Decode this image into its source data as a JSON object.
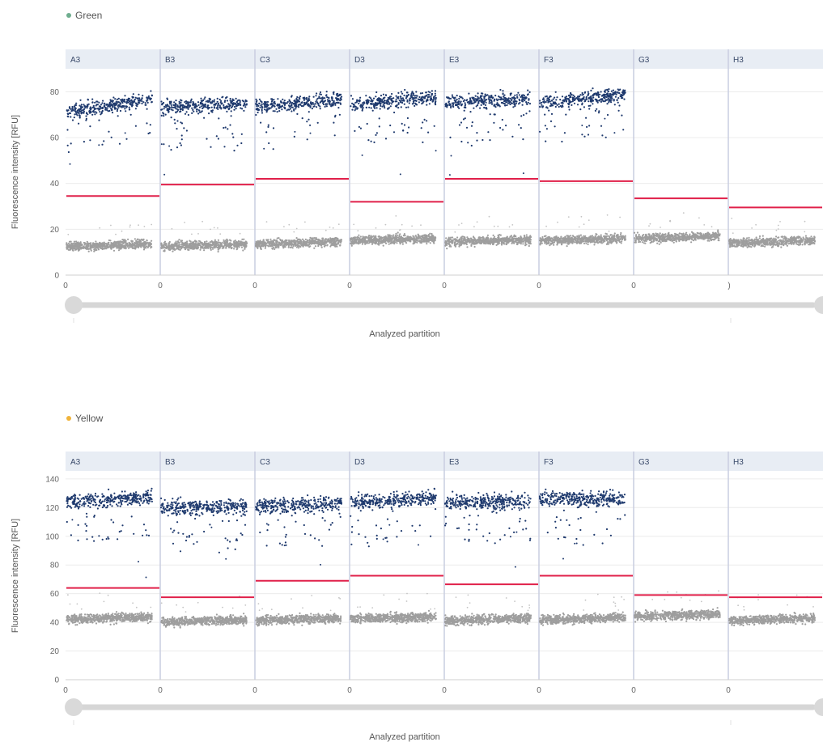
{
  "chart_data": [
    {
      "type": "scatter",
      "channel": "Green",
      "channel_color": "#6fae8f",
      "ylabel": "Fluorescence intensity [RFU]",
      "xlabel": "Analyzed partition",
      "ylim": [
        0,
        90
      ],
      "yticks": [
        0,
        20,
        40,
        60,
        80
      ],
      "wells": [
        {
          "name": "A3",
          "x_start_label": "0",
          "threshold": 34.5,
          "negative_level": 13,
          "positive_level": 74,
          "positive_trend": 6,
          "has_positive": true
        },
        {
          "name": "B3",
          "x_start_label": "0",
          "threshold": 39.5,
          "negative_level": 13,
          "positive_level": 74,
          "positive_trend": 2,
          "has_positive": true
        },
        {
          "name": "C3",
          "x_start_label": "0",
          "threshold": 42,
          "negative_level": 14,
          "positive_level": 75,
          "positive_trend": 4,
          "has_positive": true
        },
        {
          "name": "D3",
          "x_start_label": "0",
          "threshold": 32,
          "negative_level": 15.5,
          "positive_level": 76,
          "positive_trend": 4,
          "has_positive": true
        },
        {
          "name": "E3",
          "x_start_label": "0",
          "threshold": 42,
          "negative_level": 15,
          "positive_level": 76,
          "positive_trend": 2,
          "has_positive": true
        },
        {
          "name": "F3",
          "x_start_label": "0",
          "threshold": 41,
          "negative_level": 15.5,
          "positive_level": 77,
          "positive_trend": 4,
          "has_positive": true
        },
        {
          "name": "G3",
          "x_start_label": "0",
          "threshold": 33.5,
          "negative_level": 16.5,
          "positive_level": 0,
          "positive_trend": 0,
          "has_positive": false
        },
        {
          "name": "H3",
          "x_start_label": ")",
          "threshold": 29.5,
          "negative_level": 14.5,
          "positive_level": 0,
          "positive_trend": 0,
          "has_positive": false
        }
      ],
      "positive_color": "#1f3a6e",
      "negative_color": "#9e9e9e",
      "threshold_color": "#e0204a"
    },
    {
      "type": "scatter",
      "channel": "Yellow",
      "channel_color": "#f0b43c",
      "ylabel": "Fluorescence intensity [RFU]",
      "xlabel": "Analyzed partition",
      "ylim": [
        0,
        145
      ],
      "yticks": [
        0,
        20,
        40,
        60,
        80,
        100,
        120,
        140
      ],
      "wells": [
        {
          "name": "A3",
          "x_start_label": "0",
          "threshold": 64,
          "negative_level": 43,
          "positive_level": 126,
          "positive_trend": 4,
          "has_positive": true
        },
        {
          "name": "B3",
          "x_start_label": "0",
          "threshold": 57.5,
          "negative_level": 41,
          "positive_level": 120,
          "positive_trend": 0,
          "has_positive": true
        },
        {
          "name": "C3",
          "x_start_label": "0",
          "threshold": 69,
          "negative_level": 42,
          "positive_level": 122,
          "positive_trend": 2,
          "has_positive": true
        },
        {
          "name": "D3",
          "x_start_label": "0",
          "threshold": 72.5,
          "negative_level": 43,
          "positive_level": 125,
          "positive_trend": 3,
          "has_positive": true
        },
        {
          "name": "E3",
          "x_start_label": "0",
          "threshold": 66.5,
          "negative_level": 42,
          "positive_level": 124,
          "positive_trend": 0,
          "has_positive": true
        },
        {
          "name": "F3",
          "x_start_label": "0",
          "threshold": 72.5,
          "negative_level": 42.5,
          "positive_level": 126,
          "positive_trend": 0,
          "has_positive": true
        },
        {
          "name": "G3",
          "x_start_label": "0",
          "threshold": 59,
          "negative_level": 45,
          "positive_level": 0,
          "positive_trend": 0,
          "has_positive": false
        },
        {
          "name": "H3",
          "x_start_label": "0",
          "threshold": 57.5,
          "negative_level": 42,
          "positive_level": 0,
          "positive_trend": 0,
          "has_positive": false
        }
      ],
      "positive_color": "#1f3a6e",
      "negative_color": "#9e9e9e",
      "threshold_color": "#e0204a"
    }
  ],
  "header_strip_color": "#e8edf4",
  "divider_color": "#c9cde0",
  "slider_color": "#d6d6d6"
}
